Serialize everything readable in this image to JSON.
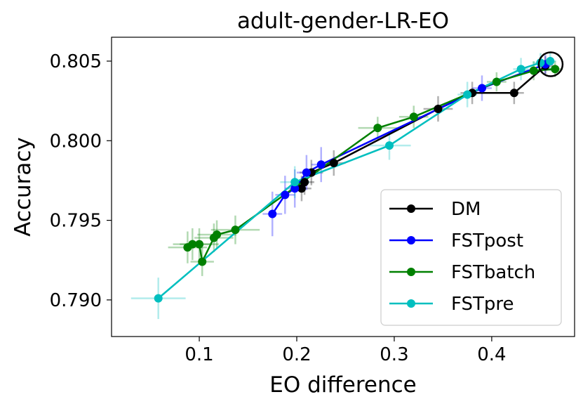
{
  "chart_data": {
    "type": "line",
    "title": "adult-gender-LR-EO",
    "xlabel": "EO difference",
    "ylabel": "Accuracy",
    "xlim": [
      0.01,
      0.485
    ],
    "ylim": [
      0.7877,
      0.8065
    ],
    "xticks": [
      0.1,
      0.2,
      0.3,
      0.4
    ],
    "xtick_labels": [
      "0.1",
      "0.2",
      "0.3",
      "0.4"
    ],
    "yticks": [
      0.79,
      0.795,
      0.8,
      0.805
    ],
    "ytick_labels": [
      "0.790",
      "0.795",
      "0.800",
      "0.805"
    ],
    "grid": false,
    "legend_position": "lower-right",
    "highlight_circle": {
      "x": 0.4605,
      "y": 0.8048
    },
    "series": [
      {
        "name": "DM",
        "color": "#000000",
        "x": [
          0.205,
          0.208,
          0.215,
          0.238,
          0.345,
          0.38,
          0.423,
          0.455
        ],
        "y": [
          0.797,
          0.7974,
          0.798,
          0.7986,
          0.802,
          0.803,
          0.803,
          0.8047
        ],
        "xerr": [
          0.01,
          0.01,
          0.012,
          0.012,
          0.015,
          0.012,
          0.01,
          0.008
        ],
        "yerr": [
          0.0008,
          0.0008,
          0.0008,
          0.0008,
          0.0008,
          0.0007,
          0.0007,
          0.0006
        ]
      },
      {
        "name": "FSTpost",
        "color": "#0000ff",
        "x": [
          0.175,
          0.188,
          0.198,
          0.21,
          0.225,
          0.39,
          0.455
        ],
        "y": [
          0.7954,
          0.7966,
          0.797,
          0.798,
          0.7985,
          0.8033,
          0.8048
        ],
        "xerr": [
          0.01,
          0.01,
          0.01,
          0.01,
          0.01,
          0.01,
          0.008
        ],
        "yerr": [
          0.0014,
          0.0012,
          0.0012,
          0.0011,
          0.0011,
          0.0008,
          0.0006
        ]
      },
      {
        "name": "FSTbatch",
        "color": "#008000",
        "x": [
          0.088,
          0.093,
          0.1,
          0.103,
          0.115,
          0.118,
          0.137,
          0.283,
          0.32,
          0.405,
          0.443,
          0.465
        ],
        "y": [
          0.7933,
          0.7935,
          0.7935,
          0.7924,
          0.7939,
          0.7941,
          0.7944,
          0.8008,
          0.8015,
          0.8037,
          0.8044,
          0.8045
        ],
        "xerr": [
          0.02,
          0.02,
          0.02,
          0.012,
          0.02,
          0.02,
          0.025,
          0.02,
          0.015,
          0.01,
          0.01,
          0.008
        ],
        "yerr": [
          0.001,
          0.001,
          0.001,
          0.0009,
          0.0009,
          0.0009,
          0.0009,
          0.0007,
          0.0007,
          0.0006,
          0.0006,
          0.0005
        ]
      },
      {
        "name": "FSTpre",
        "color": "#00bfbf",
        "x": [
          0.058,
          0.198,
          0.295,
          0.375,
          0.43,
          0.45,
          0.46
        ],
        "y": [
          0.7901,
          0.7974,
          0.7997,
          0.8029,
          0.8045,
          0.8049,
          0.805
        ],
        "xerr": [
          0.028,
          0.015,
          0.022,
          0.01,
          0.008,
          0.008,
          0.006
        ],
        "yerr": [
          0.0013,
          0.001,
          0.0009,
          0.0008,
          0.0007,
          0.0006,
          0.0006
        ]
      }
    ]
  }
}
